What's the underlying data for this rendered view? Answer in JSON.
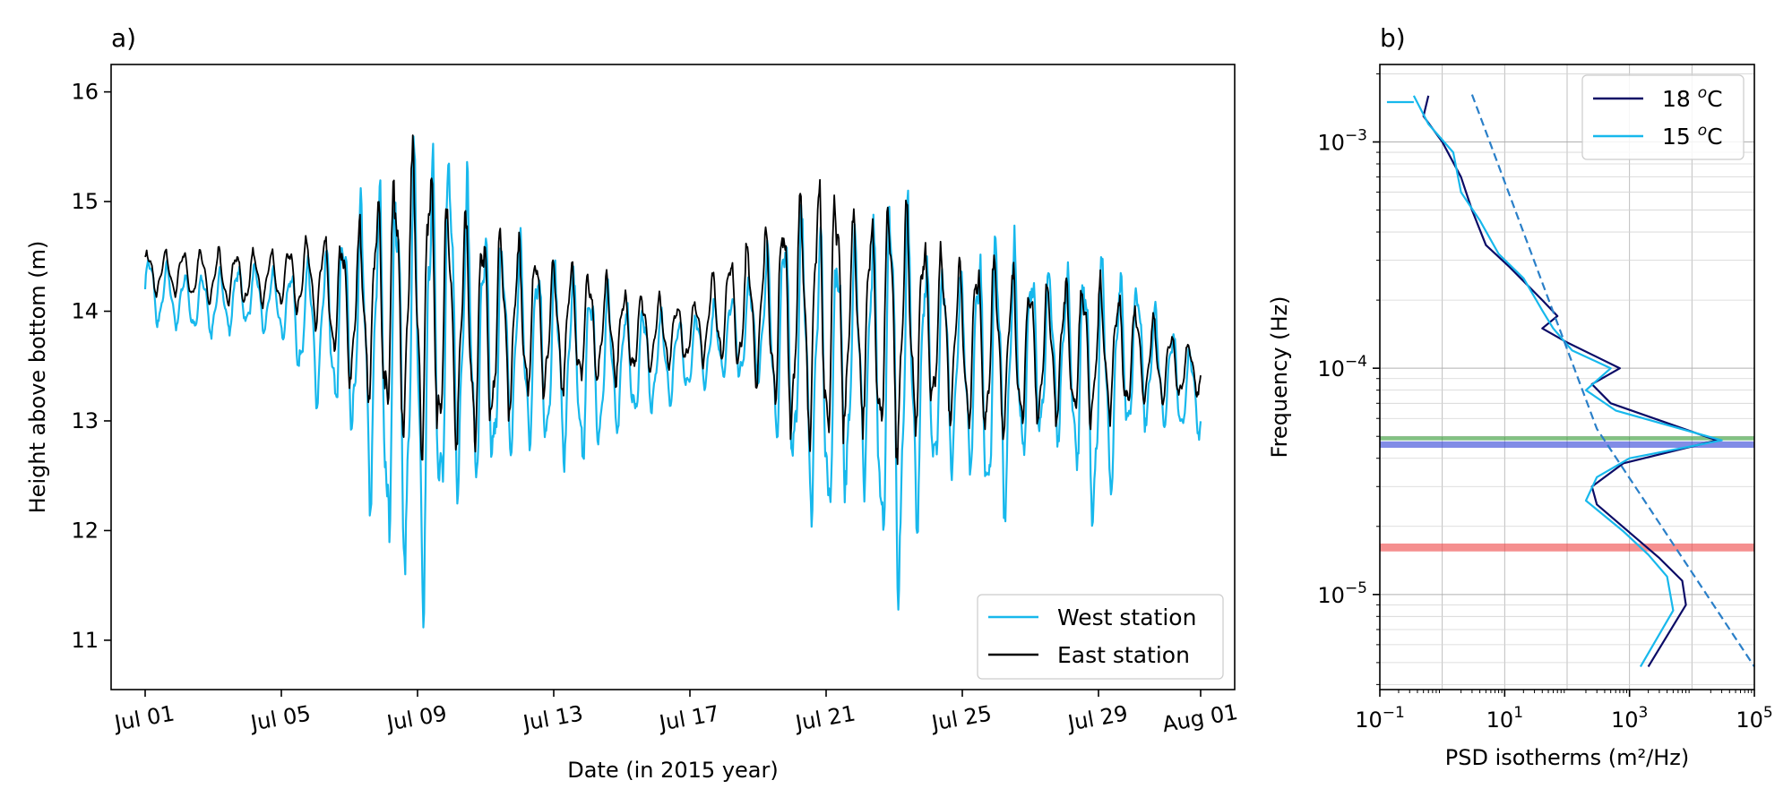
{
  "chart_data": [
    {
      "type": "line",
      "panel_label": "a)",
      "xlabel": "Date (in 2015 year)",
      "ylabel": "Height above bottom (m)",
      "x_range": [
        "2015-06-30",
        "2015-08-02"
      ],
      "ylim": [
        10.55,
        16.25
      ],
      "x_ticks": [
        {
          "date": "2015-07-01",
          "label": "Jul 01"
        },
        {
          "date": "2015-07-05",
          "label": "Jul 05"
        },
        {
          "date": "2015-07-09",
          "label": "Jul 09"
        },
        {
          "date": "2015-07-13",
          "label": "Jul 13"
        },
        {
          "date": "2015-07-17",
          "label": "Jul 17"
        },
        {
          "date": "2015-07-21",
          "label": "Jul 21"
        },
        {
          "date": "2015-07-25",
          "label": "Jul 25"
        },
        {
          "date": "2015-07-29",
          "label": "Jul 29"
        },
        {
          "date": "2015-08-01",
          "label": "Aug 01"
        }
      ],
      "y_ticks": [
        "11",
        "12",
        "13",
        "14",
        "15",
        "16"
      ],
      "legend_position": "lower-right",
      "grid": false,
      "envelope_note": "values are daily height ranges; the plotted trace oscillates semi-diurnally between min and max",
      "series": [
        {
          "name": "West station",
          "color": "#17b8ec",
          "dates": [
            "2015-07-01",
            "2015-07-02",
            "2015-07-03",
            "2015-07-04",
            "2015-07-05",
            "2015-07-06",
            "2015-07-07",
            "2015-07-08",
            "2015-07-09",
            "2015-07-10",
            "2015-07-11",
            "2015-07-12",
            "2015-07-13",
            "2015-07-14",
            "2015-07-15",
            "2015-07-16",
            "2015-07-17",
            "2015-07-18",
            "2015-07-19",
            "2015-07-20",
            "2015-07-21",
            "2015-07-22",
            "2015-07-23",
            "2015-07-24",
            "2015-07-25",
            "2015-07-26",
            "2015-07-27",
            "2015-07-28",
            "2015-07-29",
            "2015-07-30",
            "2015-07-31",
            "2015-08-01"
          ],
          "min": [
            13.8,
            13.8,
            13.7,
            13.8,
            13.7,
            13.0,
            12.8,
            11.5,
            10.8,
            11.9,
            12.2,
            12.6,
            12.5,
            12.4,
            12.8,
            13.0,
            13.2,
            13.3,
            13.2,
            12.2,
            11.6,
            12.4,
            10.8,
            12.2,
            12.5,
            11.6,
            12.6,
            12.7,
            11.6,
            12.8,
            12.8,
            12.8
          ],
          "max": [
            14.6,
            14.4,
            14.4,
            14.5,
            14.4,
            14.7,
            15.0,
            15.5,
            15.9,
            15.8,
            15.0,
            14.8,
            14.6,
            14.5,
            14.2,
            14.1,
            14.0,
            14.2,
            14.5,
            15.2,
            15.0,
            14.8,
            15.6,
            14.7,
            14.5,
            15.1,
            14.6,
            14.5,
            14.8,
            14.5,
            14.0,
            13.6
          ]
        },
        {
          "name": "East station",
          "color": "#000000",
          "dates": [
            "2015-07-01",
            "2015-07-02",
            "2015-07-03",
            "2015-07-04",
            "2015-07-05",
            "2015-07-06",
            "2015-07-07",
            "2015-07-08",
            "2015-07-09",
            "2015-07-10",
            "2015-07-11",
            "2015-07-12",
            "2015-07-13",
            "2015-07-14",
            "2015-07-15",
            "2015-07-16",
            "2015-07-17",
            "2015-07-18",
            "2015-07-19",
            "2015-07-20",
            "2015-07-21",
            "2015-07-22",
            "2015-07-23",
            "2015-07-24",
            "2015-07-25",
            "2015-07-26",
            "2015-07-27",
            "2015-07-28",
            "2015-07-29",
            "2015-07-30",
            "2015-07-31",
            "2015-08-01"
          ],
          "min": [
            14.1,
            14.1,
            14.0,
            14.0,
            14.0,
            13.8,
            13.2,
            12.8,
            12.4,
            12.5,
            12.6,
            13.0,
            13.1,
            13.2,
            13.3,
            13.4,
            13.5,
            13.4,
            13.2,
            12.6,
            12.5,
            12.8,
            12.4,
            12.9,
            12.8,
            12.6,
            12.8,
            12.9,
            12.8,
            13.0,
            13.1,
            13.2
          ],
          "max": [
            14.6,
            14.6,
            14.6,
            14.6,
            14.6,
            14.8,
            14.8,
            15.3,
            15.9,
            15.2,
            15.0,
            14.8,
            14.6,
            14.5,
            14.3,
            14.2,
            14.1,
            14.6,
            14.8,
            15.3,
            15.5,
            15.0,
            15.3,
            14.8,
            14.6,
            14.7,
            14.4,
            14.4,
            14.4,
            14.2,
            13.9,
            13.7
          ]
        }
      ]
    },
    {
      "type": "line",
      "panel_label": "b)",
      "xlabel": "PSD isotherms (m²/Hz)",
      "ylabel": "Frequency (Hz)",
      "x_scale": "log",
      "y_scale": "log",
      "xlim": [
        0.1,
        100000
      ],
      "ylim": [
        3.8e-06,
        0.0022
      ],
      "grid": true,
      "legend_position": "upper-right",
      "x_tick_labels": [
        {
          "mantissa": "10",
          "exp": "−1",
          "value": 0.1
        },
        {
          "mantissa": "10",
          "exp": "1",
          "value": 10
        },
        {
          "mantissa": "10",
          "exp": "3",
          "value": 1000
        },
        {
          "mantissa": "10",
          "exp": "5",
          "value": 100000
        }
      ],
      "y_tick_labels": [
        {
          "mantissa": "10",
          "exp": "−3",
          "value": 0.001
        },
        {
          "mantissa": "10",
          "exp": "−4",
          "value": 0.0001
        },
        {
          "mantissa": "10",
          "exp": "−5",
          "value": 1e-05
        }
      ],
      "series": [
        {
          "name_main": "18 ",
          "name_sup": "o",
          "name_tail": "C",
          "color": "#0b0b66",
          "points": [
            [
              2000,
              4.8e-06
            ],
            [
              8000,
              9e-06
            ],
            [
              7000,
              1.15e-05
            ],
            [
              3000,
              1.45e-05
            ],
            [
              1200,
              1.8e-05
            ],
            [
              300,
              2.5e-05
            ],
            [
              250,
              3e-05
            ],
            [
              800,
              3.8e-05
            ],
            [
              25000,
              4.8e-05
            ],
            [
              500,
              7e-05
            ],
            [
              250,
              8.5e-05
            ],
            [
              700,
              0.0001
            ],
            [
              100,
              0.00013
            ],
            [
              40,
              0.00015
            ],
            [
              70,
              0.00017
            ],
            [
              40,
              0.0002
            ],
            [
              12,
              0.00028
            ],
            [
              5,
              0.00035
            ],
            [
              3,
              0.0005
            ],
            [
              2,
              0.0007
            ],
            [
              1,
              0.001
            ],
            [
              0.5,
              0.0013
            ],
            [
              0.6,
              0.0016
            ]
          ]
        },
        {
          "name_main": "15 ",
          "name_sup": "o",
          "name_tail": "C",
          "color": "#17b8ec",
          "points": [
            [
              1500,
              4.8e-06
            ],
            [
              5000,
              8.5e-06
            ],
            [
              4000,
              1.2e-05
            ],
            [
              2000,
              1.5e-05
            ],
            [
              800,
              1.9e-05
            ],
            [
              200,
              2.6e-05
            ],
            [
              300,
              3.3e-05
            ],
            [
              1000,
              4e-05
            ],
            [
              30000,
              4.8e-05
            ],
            [
              600,
              6.5e-05
            ],
            [
              200,
              8e-05
            ],
            [
              500,
              0.0001
            ],
            [
              120,
              0.00012
            ],
            [
              60,
              0.00015
            ],
            [
              40,
              0.00018
            ],
            [
              20,
              0.00025
            ],
            [
              8,
              0.00032
            ],
            [
              4,
              0.00045
            ],
            [
              2,
              0.0006
            ],
            [
              1.5,
              0.0009
            ],
            [
              0.6,
              0.0012
            ],
            [
              0.35,
              0.0016
            ]
          ]
        },
        {
          "name": "",
          "color": "#2a7fc8",
          "dashed": true,
          "points": [
            [
              3,
              0.00162
            ],
            [
              300,
              5.4e-05
            ],
            [
              100000,
              4.8e-06
            ]
          ]
        }
      ],
      "bands": [
        {
          "low": 4.8e-05,
          "high": 5e-05,
          "color": "#2f9a2f"
        },
        {
          "low": 4.45e-05,
          "high": 4.75e-05,
          "color": "#2d3fd6"
        },
        {
          "low": 1.55e-05,
          "high": 1.68e-05,
          "color": "#ee4444"
        }
      ]
    }
  ]
}
